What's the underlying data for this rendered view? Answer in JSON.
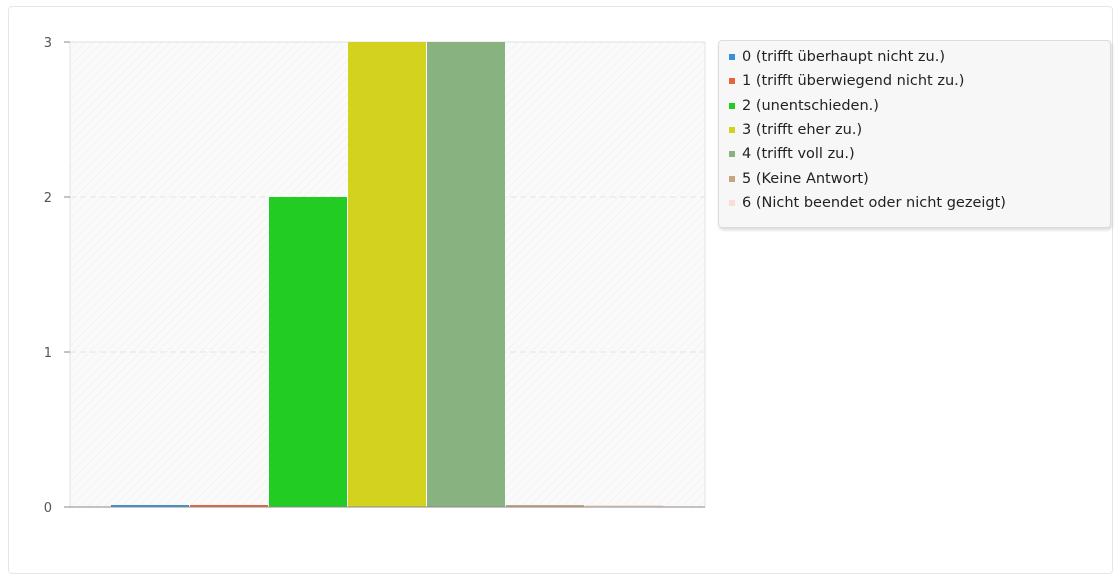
{
  "chart_data": {
    "type": "bar",
    "categories": [
      "0 (trifft überhaupt nicht zu.)",
      "1 (trifft überwiegend nicht zu.)",
      "2 (unentschieden.)",
      "3 (trifft eher zu.)",
      "4 (trifft voll zu.)",
      "5 (Keine Antwort)",
      "6 (Nicht beendet oder nicht gezeigt)"
    ],
    "values": [
      0,
      0,
      2,
      3,
      3,
      0,
      0
    ],
    "colors": [
      "#3a8fd8",
      "#e8633a",
      "#22cc22",
      "#d3d31f",
      "#88b381",
      "#c8a582",
      "#f7dfd6"
    ],
    "yticks": [
      "0",
      "1",
      "2",
      "3"
    ],
    "ylim": [
      0,
      3
    ],
    "grid": true,
    "legend_position": "top-right"
  }
}
